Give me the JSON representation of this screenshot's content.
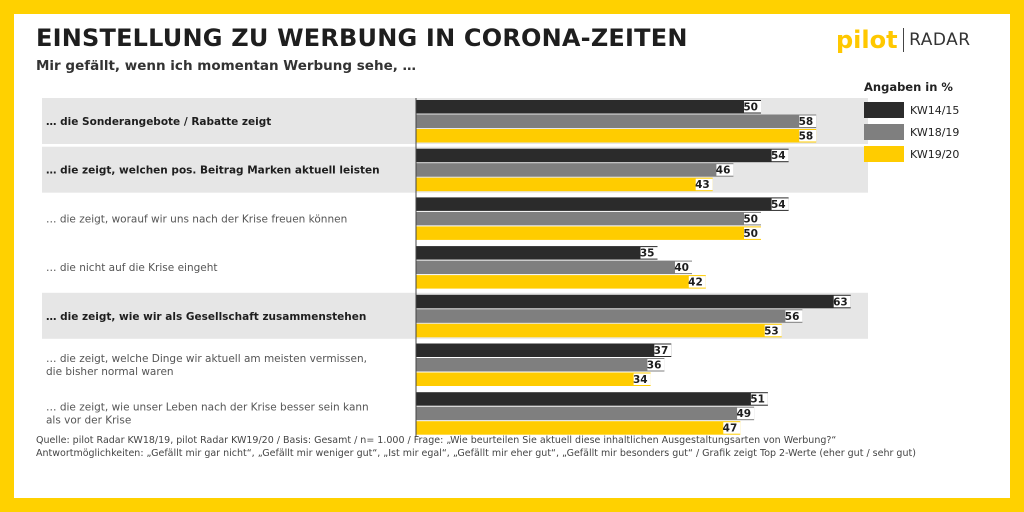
{
  "title": "EINSTELLUNG ZU WERBUNG IN CORONA-ZEITEN",
  "subtitle": "Mir gefällt, wenn ich momentan Werbung sehe, …",
  "logo": {
    "left": "pilot",
    "right": "RADAR"
  },
  "legend": {
    "title": "Angaben in %"
  },
  "colors": {
    "frame": "#ffd100",
    "highlight_row": "#e6e6e6",
    "label_bold": "#1e1e1e",
    "label_normal": "#555555"
  },
  "chart_data": {
    "type": "bar",
    "orientation": "horizontal",
    "categories": [
      "… die Sonderangebote / Rabatte zeigt",
      "… die zeigt, welchen pos. Beitrag Marken aktuell leisten",
      "… die zeigt, worauf wir uns nach der Krise freuen können",
      "… die nicht auf die Krise eingeht",
      "… die zeigt, wie wir als Gesellschaft zusammenstehen",
      "… die zeigt, welche Dinge wir aktuell am meisten vermissen, die bisher normal waren",
      "… die zeigt, wie unser Leben nach der Krise besser sein kann als vor der Krise"
    ],
    "category_lines": [
      [
        "… die Sonderangebote / Rabatte zeigt"
      ],
      [
        "… die zeigt, welchen pos. Beitrag Marken aktuell leisten"
      ],
      [
        "… die zeigt, worauf wir uns nach der Krise freuen können"
      ],
      [
        "… die nicht auf die Krise eingeht"
      ],
      [
        "… die zeigt, wie wir als Gesellschaft zusammenstehen"
      ],
      [
        "… die zeigt, welche Dinge wir aktuell am meisten vermissen,",
        "die bisher normal waren"
      ],
      [
        "… die zeigt, wie unser Leben nach der Krise besser sein kann",
        "als vor der Krise"
      ]
    ],
    "highlighted": [
      true,
      true,
      false,
      false,
      true,
      false,
      false
    ],
    "series": [
      {
        "name": "KW14/15",
        "color": "#2b2b2b",
        "values": [
          50,
          54,
          54,
          35,
          63,
          37,
          51
        ]
      },
      {
        "name": "KW18/19",
        "color": "#7f7f7f",
        "values": [
          58,
          46,
          50,
          40,
          56,
          36,
          49
        ]
      },
      {
        "name": "KW19/20",
        "color": "#ffcc00",
        "values": [
          58,
          43,
          50,
          42,
          53,
          34,
          47
        ]
      }
    ],
    "xlim": [
      0,
      100
    ],
    "data_labels": true,
    "legend_position": "right"
  },
  "footer": {
    "line1": "Quelle: pilot Radar KW18/19, pilot Radar KW19/20 / Basis: Gesamt / n= 1.000  / Frage: „Wie beurteilen Sie aktuell diese inhaltlichen Ausgestaltungsarten von Werbung?“",
    "line2": "Antwortmöglichkeiten: „Gefällt mir gar nicht“, „Gefällt mir weniger gut“, „Ist mir egal“, „Gefällt mir eher gut“, „Gefällt mir besonders gut“ / Grafik zeigt Top 2-Werte (eher gut / sehr gut)"
  }
}
